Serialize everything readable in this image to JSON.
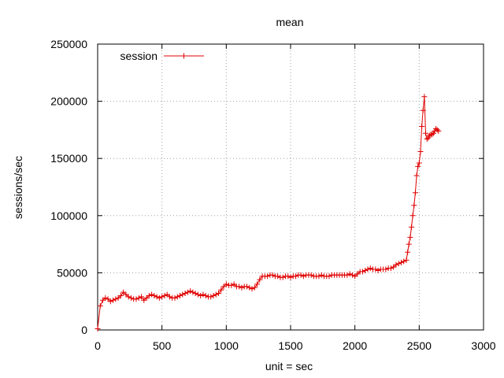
{
  "chart_data": {
    "type": "line",
    "title": "mean",
    "xlabel": "unit = sec",
    "ylabel": "sessions/sec",
    "xlim": [
      0,
      3000
    ],
    "ylim": [
      0,
      250000
    ],
    "x_ticks": [
      0,
      500,
      1000,
      1500,
      2000,
      2500,
      3000
    ],
    "y_ticks": [
      0,
      50000,
      100000,
      150000,
      200000,
      250000
    ],
    "x_tick_labels": [
      "0",
      "500",
      "1000",
      "1500",
      "2000",
      "2500",
      "3000"
    ],
    "y_tick_labels": [
      "0",
      "50000",
      "100000",
      "150000",
      "200000",
      "250000"
    ],
    "grid": true,
    "legend_position": "top-left",
    "point_marker": "plus",
    "series": [
      {
        "name": "session",
        "color": "#e00000",
        "x": [
          0,
          20,
          40,
          60,
          80,
          100,
          120,
          140,
          160,
          180,
          200,
          220,
          240,
          260,
          280,
          300,
          320,
          340,
          360,
          380,
          400,
          420,
          440,
          460,
          480,
          500,
          520,
          540,
          560,
          580,
          600,
          620,
          640,
          660,
          680,
          700,
          720,
          740,
          760,
          780,
          800,
          820,
          840,
          860,
          880,
          900,
          920,
          940,
          960,
          980,
          1000,
          1020,
          1040,
          1060,
          1080,
          1100,
          1120,
          1140,
          1160,
          1180,
          1200,
          1220,
          1240,
          1260,
          1280,
          1300,
          1320,
          1340,
          1360,
          1380,
          1400,
          1420,
          1440,
          1460,
          1480,
          1500,
          1520,
          1540,
          1560,
          1580,
          1600,
          1620,
          1640,
          1660,
          1680,
          1700,
          1720,
          1740,
          1760,
          1780,
          1800,
          1820,
          1840,
          1860,
          1880,
          1900,
          1920,
          1940,
          1960,
          1980,
          2000,
          2020,
          2040,
          2060,
          2080,
          2100,
          2120,
          2140,
          2160,
          2180,
          2200,
          2220,
          2240,
          2260,
          2280,
          2300,
          2320,
          2340,
          2360,
          2380,
          2400,
          2410,
          2420,
          2430,
          2440,
          2450,
          2460,
          2470,
          2480,
          2490,
          2500,
          2510,
          2520,
          2530,
          2540,
          2550,
          2560,
          2570,
          2580,
          2590,
          2600,
          2610,
          2620,
          2630,
          2640,
          2650
        ],
        "values": [
          1000,
          21000,
          26000,
          28000,
          27000,
          25000,
          26000,
          27000,
          28000,
          30000,
          33000,
          31000,
          29000,
          28000,
          27000,
          27000,
          28000,
          29000,
          26000,
          28000,
          30000,
          31000,
          30000,
          29000,
          28000,
          29000,
          30000,
          31000,
          29000,
          28000,
          28000,
          29000,
          30000,
          31000,
          32000,
          33000,
          34000,
          33000,
          32000,
          31000,
          30000,
          31000,
          30000,
          29000,
          29000,
          30000,
          31000,
          32000,
          35000,
          38000,
          40000,
          39000,
          39000,
          40000,
          38000,
          38000,
          37000,
          38000,
          38000,
          37000,
          36000,
          37000,
          40000,
          44000,
          47000,
          47000,
          47000,
          48000,
          48000,
          47000,
          47000,
          46000,
          46000,
          47000,
          47000,
          46000,
          47000,
          47000,
          48000,
          48000,
          47000,
          48000,
          48000,
          48000,
          47000,
          47000,
          47000,
          48000,
          47000,
          47000,
          47000,
          48000,
          48000,
          48000,
          48000,
          48000,
          48000,
          48000,
          49000,
          48000,
          47000,
          49000,
          51000,
          51000,
          52000,
          53000,
          54000,
          53000,
          53000,
          52000,
          53000,
          53000,
          53000,
          54000,
          54000,
          55000,
          57000,
          58000,
          59000,
          60000,
          61000,
          68000,
          75000,
          81000,
          90000,
          100000,
          109000,
          120000,
          135000,
          143000,
          146000,
          156000,
          178000,
          192000,
          204000,
          172000,
          167000,
          168000,
          170000,
          171000,
          171000,
          172000,
          174000,
          176000,
          175000,
          174000
        ]
      }
    ]
  }
}
